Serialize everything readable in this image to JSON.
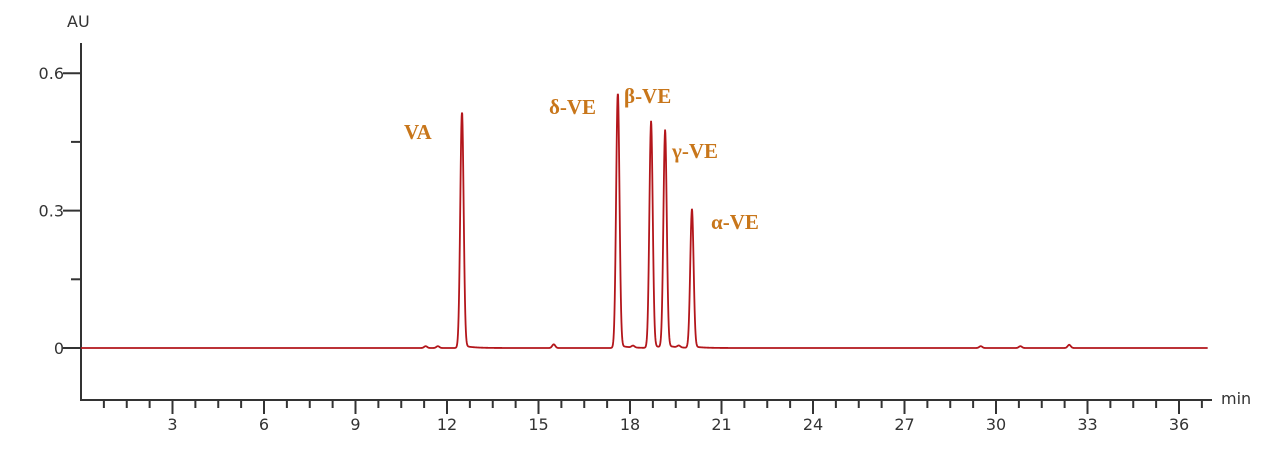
{
  "chart_data": {
    "type": "line",
    "title": "",
    "xlabel": "min",
    "ylabel": "AU",
    "xlim": [
      0,
      37
    ],
    "ylim": [
      -0.113,
      0.66
    ],
    "x_ticks": [
      3,
      6,
      9,
      12,
      15,
      18,
      21,
      24,
      27,
      30,
      33,
      36
    ],
    "x_minor_tick_step": 0.75,
    "y_ticks": [
      0,
      0.3,
      0.6
    ],
    "y_minor_ticks": [
      0.15,
      0.45
    ],
    "grid": false,
    "line_color": "#b3161b",
    "label_color": "#c8761a",
    "series": [
      {
        "peaks": [
          {
            "label": "VA",
            "retention_time": 12.49,
            "height": 0.514
          },
          {
            "label": "δ-VE",
            "retention_time": 17.6,
            "height": 0.555
          },
          {
            "label": "β-VE",
            "retention_time": 18.69,
            "height": 0.49
          },
          {
            "label": "γ-VE",
            "retention_time": 19.15,
            "height": 0.47
          },
          {
            "label": "α-VE",
            "retention_time": 20.03,
            "height": 0.3
          }
        ],
        "minor_peaks": [
          {
            "retention_time": 11.3,
            "height": 0.004
          },
          {
            "retention_time": 11.7,
            "height": 0.004
          },
          {
            "retention_time": 15.5,
            "height": 0.008
          },
          {
            "retention_time": 18.1,
            "height": 0.004
          },
          {
            "retention_time": 19.6,
            "height": 0.004
          },
          {
            "retention_time": 29.5,
            "height": 0.004
          },
          {
            "retention_time": 30.8,
            "height": 0.004
          },
          {
            "retention_time": 32.4,
            "height": 0.007
          }
        ]
      }
    ]
  }
}
